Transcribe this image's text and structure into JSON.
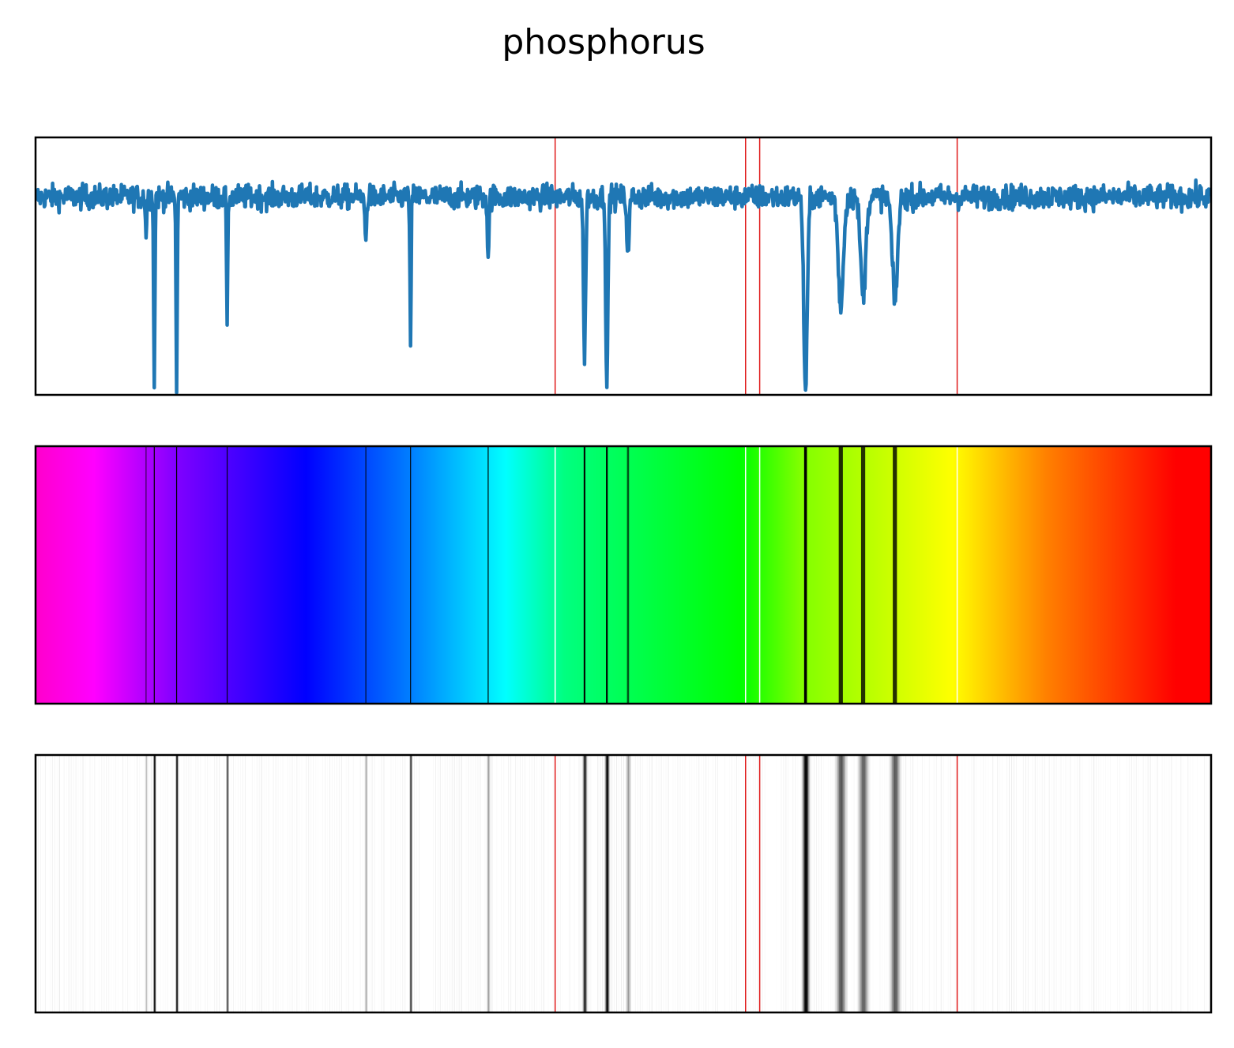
{
  "chart_data": {
    "type": "line",
    "title": "phosphorus",
    "xlabel": "",
    "ylabel": "",
    "ticks": "none",
    "x_range": [
      0,
      1000
    ],
    "y_range": [
      0,
      1.08
    ],
    "baseline": 0.83,
    "noise_amplitude": 0.025,
    "series": [
      {
        "absorption_lines": [
          {
            "x": 94,
            "depth": 0.2,
            "width": 0.5
          },
          {
            "x": 101,
            "depth": 0.98,
            "width": 0.5
          },
          {
            "x": 120,
            "depth": 0.98,
            "width": 0.5
          },
          {
            "x": 163,
            "depth": 0.68,
            "width": 0.5
          },
          {
            "x": 281,
            "depth": 0.25,
            "width": 0.6
          },
          {
            "x": 319,
            "depth": 0.75,
            "width": 0.5
          },
          {
            "x": 385,
            "depth": 0.29,
            "width": 0.7
          },
          {
            "x": 467,
            "depth": 0.81,
            "width": 0.9
          },
          {
            "x": 486,
            "depth": 0.97,
            "width": 0.9
          },
          {
            "x": 504,
            "depth": 0.26,
            "width": 1.1
          },
          {
            "x": 655,
            "depth": 0.98,
            "width": 1.5
          },
          {
            "x": 685,
            "depth": 0.55,
            "width": 2.2
          },
          {
            "x": 704,
            "depth": 0.5,
            "width": 2.2
          },
          {
            "x": 731,
            "depth": 0.53,
            "width": 2.2
          }
        ]
      }
    ],
    "reference_lines": [
      442,
      604,
      616,
      784
    ],
    "reference_line_color": "#e01b1b",
    "line_color": "#1f77b4",
    "spectrum_colors": [
      "#ff00cc",
      "#ff00ff",
      "#8000ff",
      "#0000ff",
      "#0080ff",
      "#00ffff",
      "#00ff80",
      "#00ff00",
      "#80ff00",
      "#ffff00",
      "#ff8000",
      "#ff0000"
    ],
    "panels": [
      "absorption-curve",
      "color-spectrum",
      "grayscale-spectrum"
    ]
  }
}
